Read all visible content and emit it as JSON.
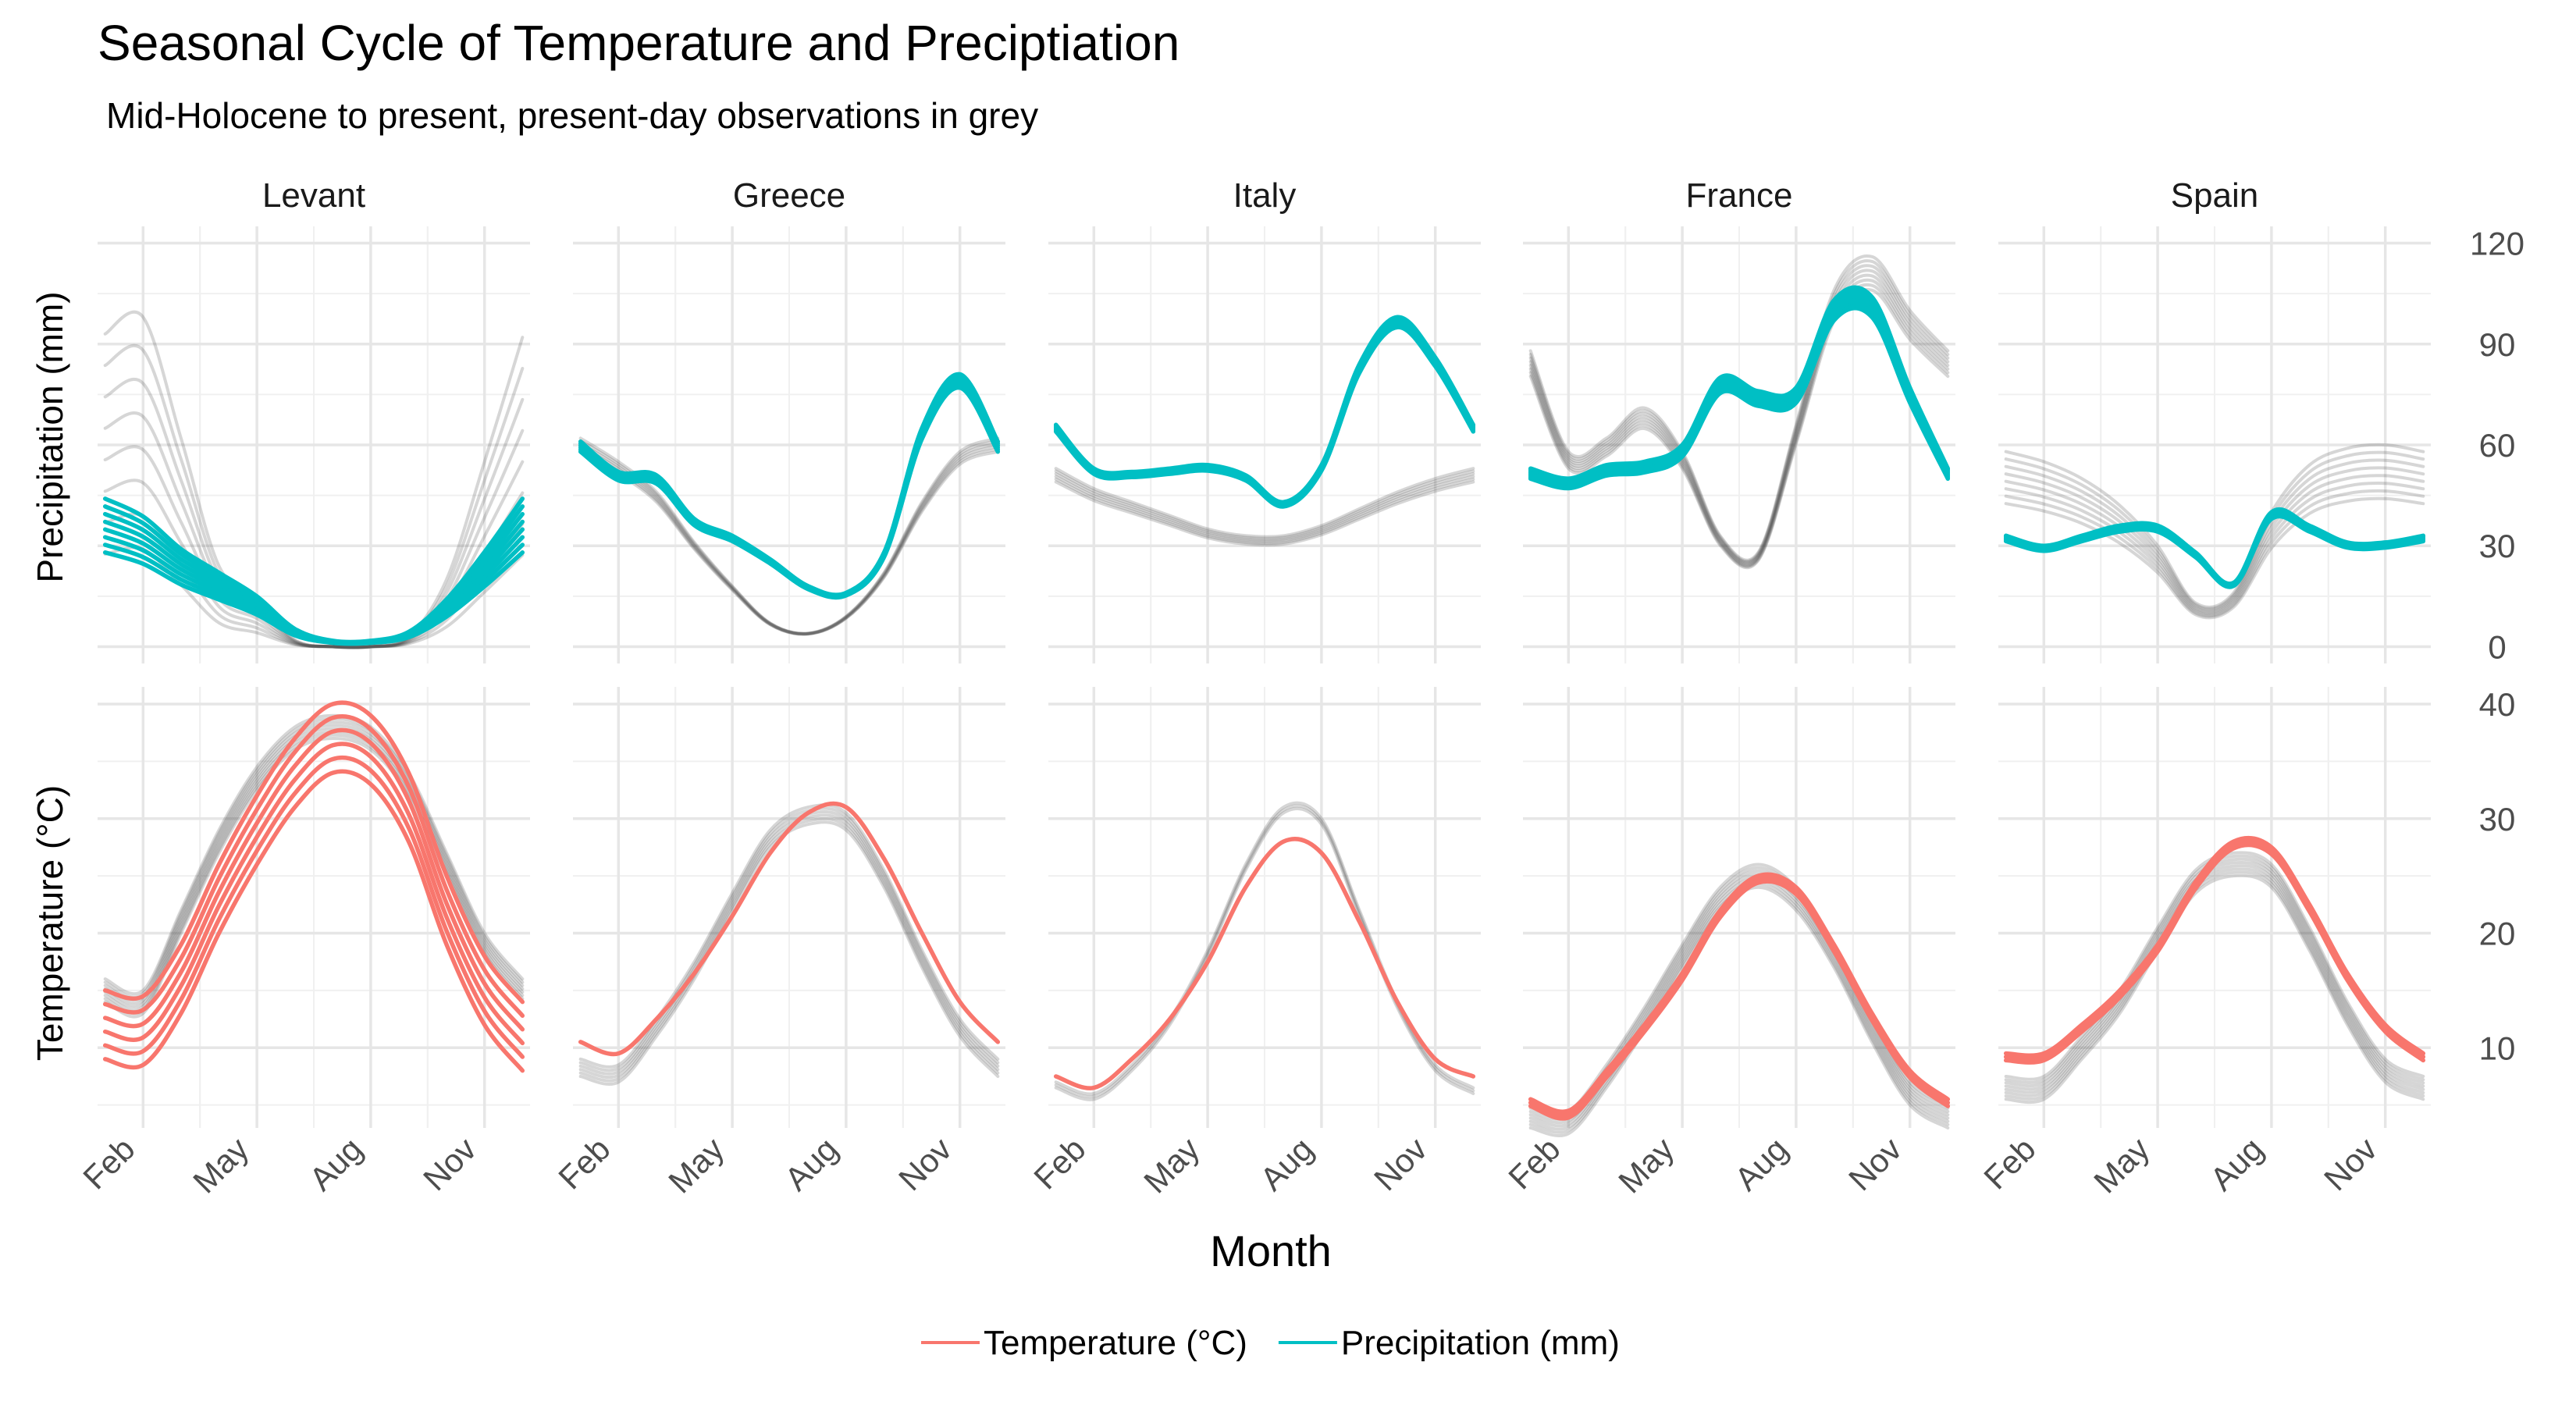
{
  "chart_data": {
    "type": "line",
    "title": "Seasonal Cycle of Temperature and Preciptiation",
    "subtitle": "Mid-Holocene to present, present-day observations in grey",
    "xlabel": "Month",
    "x_ticks": [
      "Feb",
      "May",
      "Aug",
      "Nov"
    ],
    "x_tick_values": [
      2,
      5,
      8,
      11
    ],
    "xlim": [
      0.8,
      12.2
    ],
    "regions": [
      "Levant",
      "Greece",
      "Italy",
      "France",
      "Spain"
    ],
    "rows": [
      {
        "key": "precipitation",
        "ylabel": "Precipitation (mm)",
        "ylim": [
          -5,
          125
        ],
        "ticks": [
          0,
          30,
          60,
          90,
          120
        ],
        "minor_ticks": [
          15,
          45,
          75,
          105
        ]
      },
      {
        "key": "temperature",
        "ylabel": "Temperature (°C)",
        "ylim": [
          3,
          41.5
        ],
        "ticks": [
          10,
          20,
          30,
          40
        ],
        "minor_ticks": [
          5,
          15,
          25,
          35
        ]
      }
    ],
    "colors": {
      "temperature": "#F8766D",
      "precipitation": "#00BFC4",
      "observed": "#444444"
    },
    "legend": {
      "position": "bottom",
      "items": [
        {
          "name": "Temperature (°C)",
          "key": "temperature"
        },
        {
          "name": "Precipitation (mm)",
          "key": "precipitation"
        }
      ]
    },
    "x": [
      1,
      2,
      3,
      4,
      5,
      6,
      7,
      8,
      9,
      10,
      11,
      12
    ],
    "series": [
      {
        "region": "Levant",
        "variable": "precipitation",
        "role": "model",
        "values": [
          50,
          44,
          33,
          25,
          17,
          6,
          2,
          2,
          5,
          16,
          32,
          50
        ],
        "spread": [
          -22,
          -6
        ],
        "members": 8
      },
      {
        "region": "Levant",
        "variable": "precipitation",
        "role": "observed",
        "values": [
          93,
          98,
          62,
          24,
          14,
          2,
          0,
          0,
          3,
          20,
          55,
          92
        ],
        "spread": [
          -69,
          0
        ],
        "members": 8
      },
      {
        "region": "Greece",
        "variable": "precipitation",
        "role": "model",
        "values": [
          61,
          52,
          51,
          38,
          33,
          26,
          18,
          16,
          28,
          65,
          81,
          61
        ],
        "spread": [
          -4,
          0
        ],
        "members": 6
      },
      {
        "region": "Greece",
        "variable": "precipitation",
        "role": "observed",
        "values": [
          62,
          55,
          46,
          31,
          18,
          7,
          4,
          9,
          22,
          43,
          58,
          62
        ],
        "spread": [
          -4,
          0
        ],
        "members": 6
      },
      {
        "region": "Italy",
        "variable": "precipitation",
        "role": "model",
        "values": [
          66,
          53,
          52,
          53,
          54,
          51,
          43,
          54,
          84,
          98,
          86,
          66
        ],
        "spread": [
          -3,
          0
        ],
        "members": 6
      },
      {
        "region": "Italy",
        "variable": "precipitation",
        "role": "observed",
        "values": [
          53,
          47,
          43,
          39,
          35,
          33,
          33,
          36,
          41,
          46,
          50,
          53
        ],
        "spread": [
          -4,
          0
        ],
        "members": 6
      },
      {
        "region": "France",
        "variable": "precipitation",
        "role": "model",
        "values": [
          53,
          50,
          54,
          55,
          60,
          80,
          76,
          77,
          103,
          104,
          77,
          53
        ],
        "spread": [
          -6,
          0
        ],
        "members": 8
      },
      {
        "region": "France",
        "variable": "precipitation",
        "role": "observed",
        "values": [
          88,
          58,
          62,
          71,
          58,
          33,
          28,
          66,
          106,
          116,
          100,
          88
        ],
        "spread": [
          -10,
          0
        ],
        "members": 8
      },
      {
        "region": "Spain",
        "variable": "precipitation",
        "role": "model",
        "values": [
          33,
          30,
          33,
          36,
          36,
          28,
          19,
          40,
          36,
          31,
          31,
          33
        ],
        "spread": [
          -2,
          0
        ],
        "members": 6
      },
      {
        "region": "Spain",
        "variable": "precipitation",
        "role": "observed",
        "values": [
          58,
          55,
          50,
          42,
          30,
          13,
          16,
          40,
          54,
          59,
          60,
          58
        ],
        "spread": [
          -16,
          0
        ],
        "members": 8
      },
      {
        "region": "Levant",
        "variable": "temperature",
        "role": "model",
        "values": [
          15,
          14.5,
          19,
          26,
          32,
          37,
          40,
          39,
          34,
          25,
          18,
          14
        ],
        "spread": [
          -6,
          0
        ],
        "members": 6
      },
      {
        "region": "Levant",
        "variable": "temperature",
        "role": "observed",
        "values": [
          16,
          15,
          22,
          29,
          34.5,
          38,
          39,
          38,
          34,
          27,
          20,
          16
        ],
        "spread": [
          -2,
          0
        ],
        "members": 8
      },
      {
        "region": "Greece",
        "variable": "temperature",
        "role": "model",
        "values": [
          10.5,
          9.5,
          12.5,
          16.5,
          21.5,
          27,
          30.5,
          31,
          26.5,
          20,
          14,
          10.5
        ],
        "spread": [
          0,
          0
        ],
        "members": 1
      },
      {
        "region": "Greece",
        "variable": "temperature",
        "role": "observed",
        "values": [
          9,
          8.5,
          12.5,
          17.5,
          23.5,
          29,
          31,
          30.5,
          25.5,
          18.5,
          12.5,
          9
        ],
        "spread": [
          -1.5,
          0
        ],
        "members": 6
      },
      {
        "region": "Italy",
        "variable": "temperature",
        "role": "model",
        "values": [
          7.5,
          6.5,
          9,
          12.5,
          17.5,
          24,
          28,
          27,
          21,
          14,
          9,
          7.5
        ],
        "spread": [
          0,
          0
        ],
        "members": 1
      },
      {
        "region": "Italy",
        "variable": "temperature",
        "role": "observed",
        "values": [
          7,
          6,
          8.5,
          12.5,
          18.5,
          26,
          31,
          30,
          22,
          14,
          8.5,
          6.5
        ],
        "spread": [
          -0.5,
          0
        ],
        "members": 3
      },
      {
        "region": "France",
        "variable": "temperature",
        "role": "model",
        "values": [
          5.5,
          4.5,
          8,
          12,
          16.5,
          22,
          25,
          24,
          19,
          13,
          8,
          5.5
        ],
        "spread": [
          -0.6,
          0
        ],
        "members": 3
      },
      {
        "region": "France",
        "variable": "temperature",
        "role": "observed",
        "values": [
          5,
          4.5,
          8.5,
          13.5,
          19,
          24,
          26,
          24,
          19,
          12.5,
          7,
          5
        ],
        "spread": [
          -2,
          0
        ],
        "members": 8
      },
      {
        "region": "Spain",
        "variable": "temperature",
        "role": "model",
        "values": [
          9.5,
          9.5,
          12,
          15,
          19,
          24.5,
          28,
          27.5,
          22.5,
          16.5,
          12,
          9.5
        ],
        "spread": [
          -0.6,
          0
        ],
        "members": 3
      },
      {
        "region": "Spain",
        "variable": "temperature",
        "role": "observed",
        "values": [
          7.5,
          7.5,
          11,
          15,
          20.5,
          25.5,
          27,
          26,
          20.5,
          14,
          9,
          7.5
        ],
        "spread": [
          -2,
          0
        ],
        "members": 8
      }
    ]
  }
}
